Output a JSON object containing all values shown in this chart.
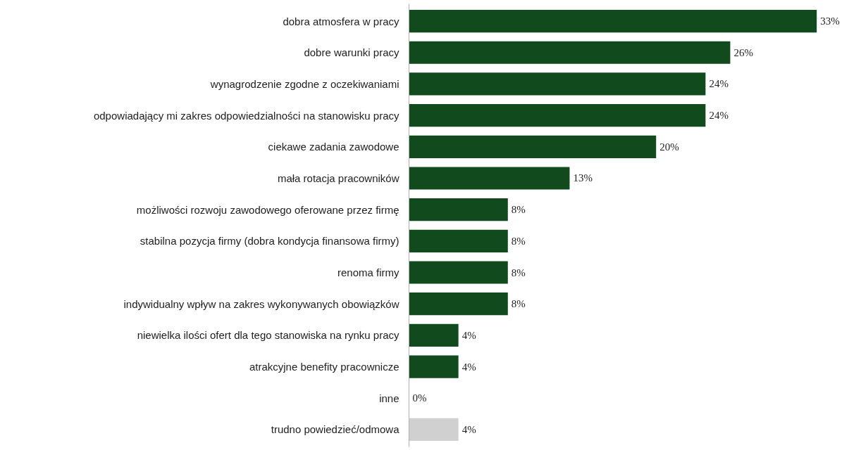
{
  "chart_data": {
    "type": "bar",
    "orientation": "horizontal",
    "categories": [
      "dobra atmosfera w pracy",
      "dobre warunki pracy",
      "wynagrodzenie zgodne z oczekiwaniami",
      "odpowiadający mi zakres odpowiedzialności na stanowisku pracy",
      "ciekawe zadania zawodowe",
      "mała rotacja pracowników",
      "możliwości rozwoju zawodowego oferowane przez firmę",
      "stabilna pozycja firmy (dobra kondycja finansowa firmy)",
      "renoma firmy",
      "indywidualny wpływ na zakres wykonywanych obowiązków",
      "niewielka ilości ofert dla tego stanowiska na rynku pracy",
      "atrakcyjne benefity pracownicze",
      "inne",
      "trudno powiedzieć/odmowa"
    ],
    "values": [
      33,
      26,
      24,
      24,
      20,
      13,
      8,
      8,
      8,
      8,
      4,
      4,
      0,
      4
    ],
    "colors": [
      "#114a1d",
      "#114a1d",
      "#114a1d",
      "#114a1d",
      "#114a1d",
      "#114a1d",
      "#114a1d",
      "#114a1d",
      "#114a1d",
      "#114a1d",
      "#114a1d",
      "#114a1d",
      "#114a1d",
      "#d0d0d0"
    ],
    "value_labels": [
      "33%",
      "26%",
      "24%",
      "24%",
      "20%",
      "13%",
      "8%",
      "8%",
      "8%",
      "8%",
      "4%",
      "4%",
      "0%",
      "4%"
    ]
  }
}
